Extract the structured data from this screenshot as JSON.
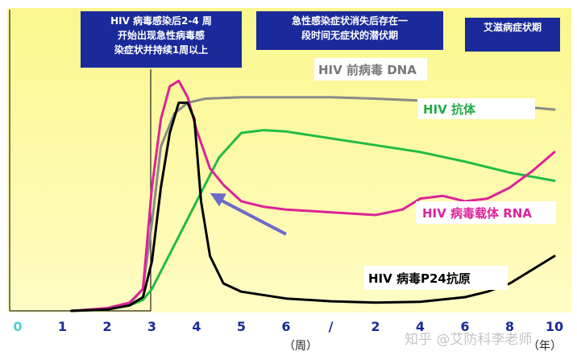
{
  "chart_data": {
    "type": "line",
    "x_ticks": [
      "0",
      "1",
      "2",
      "3",
      "4",
      "5",
      "6",
      "/",
      "2",
      "4",
      "6",
      "8",
      "10"
    ],
    "x_unit_weeks": "（周）",
    "x_unit_years": "（年）",
    "phases": [
      {
        "text": [
          "HIV 病毒感染后2-4 周",
          "开始出现急性病毒感",
          "染症状并持续1周以上"
        ]
      },
      {
        "text": [
          "急性感染症状消失后存在一",
          "段时间无症状的潜伏期"
        ]
      },
      {
        "text": [
          "艾滋病症状期"
        ]
      }
    ],
    "series": [
      {
        "name": "HIV 前病毒 DNA",
        "color": "#8a8a8a",
        "x": [
          1.2,
          1.8,
          2.2,
          2.5,
          2.8,
          3.0,
          3.2,
          3.5,
          3.8,
          4.2,
          5,
          6,
          7,
          8,
          9,
          10,
          11,
          12
        ],
        "y": [
          0,
          0.5,
          1.2,
          2.5,
          8,
          32,
          60,
          72,
          76,
          77.5,
          78,
          78,
          78,
          77.5,
          76.8,
          76,
          75,
          73.5
        ]
      },
      {
        "name": "HIV 抗体",
        "color": "#22bb44",
        "x": [
          1.2,
          2.0,
          2.5,
          2.8,
          3.0,
          3.5,
          4.0,
          4.5,
          5.0,
          5.5,
          6,
          7,
          8,
          9,
          10,
          11,
          12
        ],
        "y": [
          0,
          0.5,
          2,
          4,
          8,
          24,
          40,
          56,
          65,
          66,
          65.5,
          63,
          60.5,
          58,
          54.5,
          50.5,
          47.5
        ]
      },
      {
        "name": "HIV 病毒载体 RNA",
        "color": "#dd2299",
        "x": [
          1.2,
          2.0,
          2.5,
          2.8,
          3.0,
          3.2,
          3.4,
          3.6,
          3.8,
          4.0,
          4.3,
          4.6,
          5.0,
          5.5,
          6,
          7,
          8,
          8.6,
          9.0,
          9.5,
          10,
          10.5,
          11,
          11.5,
          12
        ],
        "y": [
          0,
          1,
          3,
          8,
          45,
          70,
          82,
          84,
          78,
          66,
          52,
          46,
          40,
          38,
          37,
          36,
          35,
          37,
          41,
          42,
          40,
          41,
          45,
          51,
          58
        ]
      },
      {
        "name": "HIV 病毒P24抗原",
        "color": "#000000",
        "x": [
          1.2,
          2.0,
          2.5,
          2.8,
          3.0,
          3.2,
          3.4,
          3.6,
          3.8,
          3.95,
          4.1,
          4.3,
          4.6,
          5.0,
          6,
          7,
          8,
          9,
          10,
          10.5,
          11,
          11.5,
          12
        ],
        "y": [
          0,
          0.5,
          2,
          5,
          18,
          45,
          65,
          76,
          76,
          70,
          40,
          20,
          10,
          7,
          4.5,
          3.5,
          3,
          3.3,
          5,
          7,
          10,
          15,
          20
        ]
      }
    ],
    "annotation_arrow": {
      "from": [
        6.0,
        28
      ],
      "to": [
        4.3,
        43
      ]
    }
  },
  "watermark": "知乎 @艾防科李老师"
}
